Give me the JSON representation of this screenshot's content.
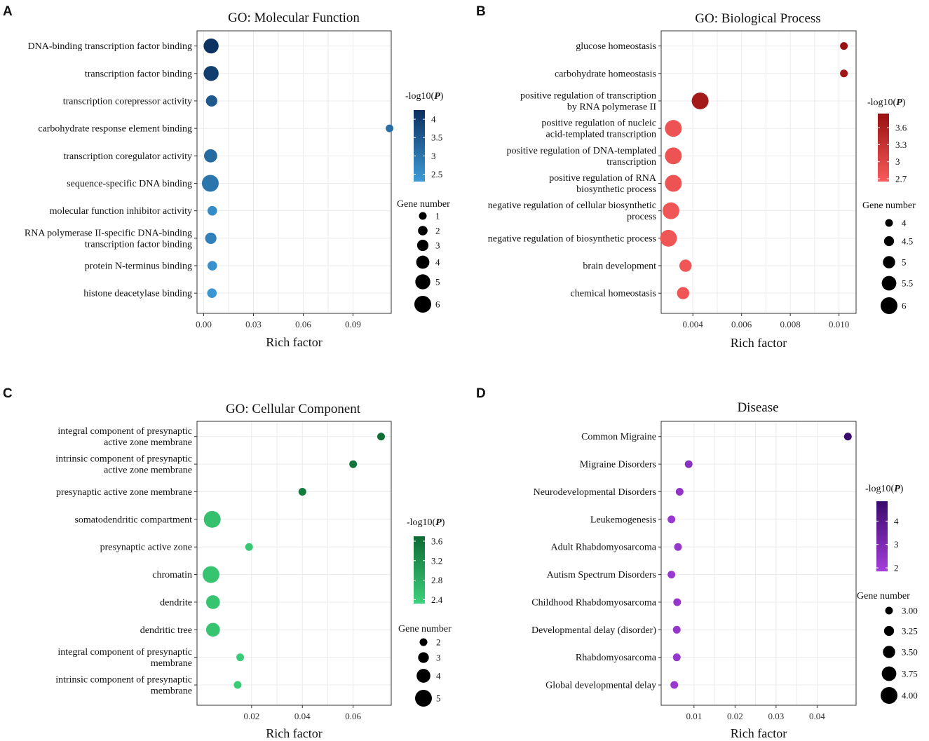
{
  "legend_titles": {
    "pvalue": "-log10(P)",
    "gene": "Gene number"
  },
  "chart_data": [
    {
      "panel": "A",
      "type": "scatter",
      "title": "GO: Molecular Function",
      "xlabel": "Rich factor",
      "xlim": [
        -0.004,
        0.113
      ],
      "xticks": [
        0.0,
        0.03,
        0.06,
        0.09
      ],
      "xticklabels": [
        "0.00",
        "0.03",
        "0.06",
        "0.09"
      ],
      "terms": [
        "DNA-binding transcription factor binding",
        "transcription factor binding",
        "transcription corepressor activity",
        "carbohydrate response element binding",
        "transcription coregulator activity",
        "sequence-specific DNA binding",
        "molecular function inhibitor activity",
        "RNA polymerase II-specific DNA-binding transcription factor binding",
        "protein N-terminus binding",
        "histone deacetylase binding"
      ],
      "term_lines": [
        [
          "DNA-binding transcription factor binding"
        ],
        [
          "transcription factor binding"
        ],
        [
          "transcription corepressor activity"
        ],
        [
          "carbohydrate response element binding"
        ],
        [
          "transcription coregulator activity"
        ],
        [
          "sequence-specific DNA binding"
        ],
        [
          "molecular function inhibitor activity"
        ],
        [
          "RNA polymerase II-specific DNA-binding",
          "transcription factor binding"
        ],
        [
          "protein N-terminus binding"
        ],
        [
          "histone deacetylase binding"
        ]
      ],
      "rich_factor": [
        0.0045,
        0.0045,
        0.0048,
        0.112,
        0.0042,
        0.004,
        0.0052,
        0.0043,
        0.0052,
        0.005
      ],
      "neg_log10_p": [
        4.2,
        4.0,
        3.5,
        3.1,
        3.2,
        3.0,
        2.6,
        2.8,
        2.5,
        2.4
      ],
      "gene_number": [
        5,
        5,
        3,
        1,
        4,
        6,
        2,
        3,
        2,
        2
      ],
      "color_legend": {
        "ticks": [
          2.5,
          3.0,
          3.5,
          4.0
        ],
        "range": [
          2.3,
          4.25
        ],
        "colors": [
          "#3d9bd8",
          "#0c305f"
        ]
      },
      "size_legend": {
        "values": [
          1,
          2,
          3,
          4,
          5,
          6
        ]
      }
    },
    {
      "panel": "B",
      "type": "scatter",
      "title": "GO: Biological Process",
      "xlabel": "Rich factor",
      "xlim": [
        0.0027,
        0.0107
      ],
      "xticks": [
        0.004,
        0.006,
        0.008,
        0.01
      ],
      "xticklabels": [
        "0.004",
        "0.006",
        "0.008",
        "0.010"
      ],
      "terms": [
        "glucose homeostasis",
        "carbohydrate homeostasis",
        "positive regulation of transcription by RNA polymerase II",
        "positive regulation of nucleic acid-templated transcription",
        "positive regulation of DNA-templated transcription",
        "positive regulation of RNA biosynthetic process",
        "negative regulation of cellular biosynthetic process",
        "negative regulation of biosynthetic process",
        "brain development",
        "chemical homeostasis"
      ],
      "term_lines": [
        [
          "glucose homeostasis"
        ],
        [
          "carbohydrate homeostasis"
        ],
        [
          "positive regulation of transcription",
          "by RNA polymerase II"
        ],
        [
          "positive regulation of nucleic",
          "acid-templated transcription"
        ],
        [
          "positive regulation of DNA-templated",
          "transcription"
        ],
        [
          "positive regulation of RNA",
          "biosynthetic process"
        ],
        [
          "negative regulation of cellular biosynthetic",
          "process"
        ],
        [
          "negative regulation of biosynthetic process"
        ],
        [
          "brain development"
        ],
        [
          "chemical homeostasis"
        ]
      ],
      "rich_factor": [
        0.0102,
        0.0102,
        0.0043,
        0.0032,
        0.0032,
        0.0032,
        0.0031,
        0.003,
        0.0037,
        0.0036
      ],
      "neg_log10_p": [
        3.85,
        3.75,
        3.7,
        2.8,
        2.8,
        2.8,
        2.75,
        2.75,
        2.75,
        2.75
      ],
      "gene_number": [
        4,
        4,
        6,
        6,
        6,
        6,
        6,
        6,
        5,
        5
      ],
      "color_legend": {
        "ticks": [
          2.7,
          3.0,
          3.3,
          3.6
        ],
        "range": [
          2.65,
          3.85
        ],
        "colors": [
          "#f95c5c",
          "#981010"
        ]
      },
      "size_legend": {
        "values": [
          4.0,
          4.5,
          5.0,
          5.5,
          6.0
        ]
      }
    },
    {
      "panel": "C",
      "type": "scatter",
      "title": "GO: Cellular Component",
      "xlabel": "Rich factor",
      "xlim": [
        -0.0015,
        0.075
      ],
      "xticks": [
        0.02,
        0.04,
        0.06
      ],
      "xticklabels": [
        "0.02",
        "0.04",
        "0.06"
      ],
      "terms": [
        "integral component of presynaptic active zone membrane",
        "intrinsic component of presynaptic active zone membrane",
        "presynaptic active zone membrane",
        "somatodendritic compartment",
        "presynaptic active zone",
        "chromatin",
        "dendrite",
        "dendritic tree",
        "integral component of presynaptic membrane",
        "intrinsic component of presynaptic membrane"
      ],
      "term_lines": [
        [
          "integral component of presynaptic",
          "active zone membrane"
        ],
        [
          "intrinsic component of presynaptic",
          "active zone membrane"
        ],
        [
          "presynaptic active zone membrane"
        ],
        [
          "somatodendritic compartment"
        ],
        [
          "presynaptic active zone"
        ],
        [
          "chromatin"
        ],
        [
          "dendrite"
        ],
        [
          "dendritic tree"
        ],
        [
          "integral component of presynaptic",
          "membrane"
        ],
        [
          "intrinsic component of presynaptic",
          "membrane"
        ]
      ],
      "rich_factor": [
        0.071,
        0.06,
        0.04,
        0.0045,
        0.019,
        0.004,
        0.0048,
        0.0048,
        0.0155,
        0.0145
      ],
      "neg_log10_p": [
        3.65,
        3.55,
        3.5,
        2.55,
        2.45,
        2.5,
        2.5,
        2.5,
        2.4,
        2.4
      ],
      "gene_number": [
        2,
        2,
        2,
        5,
        2,
        5,
        4,
        4,
        2,
        2
      ],
      "color_legend": {
        "ticks": [
          2.4,
          2.8,
          3.2,
          3.6
        ],
        "range": [
          2.32,
          3.7
        ],
        "colors": [
          "#3dd17a",
          "#0d6b34"
        ]
      },
      "size_legend": {
        "values": [
          2,
          3,
          4,
          5
        ]
      }
    },
    {
      "panel": "D",
      "type": "scatter",
      "title": "Disease",
      "xlabel": "Rich factor",
      "xlim": [
        0.002,
        0.0495
      ],
      "xticks": [
        0.01,
        0.02,
        0.03,
        0.04
      ],
      "xticklabels": [
        "0.01",
        "0.02",
        "0.03",
        "0.04"
      ],
      "terms": [
        "Common Migraine",
        "Migraine Disorders",
        "Neurodevelopmental Disorders",
        "Leukemogenesis",
        "Adult Rhabdomyosarcoma",
        "Autism Spectrum Disorders",
        "Childhood Rhabdomyosarcoma",
        "Developmental delay (disorder)",
        "Rhabdomyosarcoma",
        "Global developmental delay"
      ],
      "term_lines": [
        [
          "Common Migraine"
        ],
        [
          "Migraine Disorders"
        ],
        [
          "Neurodevelopmental Disorders"
        ],
        [
          "Leukemogenesis"
        ],
        [
          "Adult Rhabdomyosarcoma"
        ],
        [
          "Autism Spectrum Disorders"
        ],
        [
          "Childhood Rhabdomyosarcoma"
        ],
        [
          "Developmental delay (disorder)"
        ],
        [
          "Rhabdomyosarcoma"
        ],
        [
          "Global developmental delay"
        ]
      ],
      "rich_factor": [
        0.0475,
        0.0087,
        0.0065,
        0.0045,
        0.0061,
        0.0045,
        0.0059,
        0.0058,
        0.0058,
        0.0052
      ],
      "neg_log10_p": [
        4.9,
        2.6,
        2.4,
        2.2,
        2.3,
        2.2,
        2.3,
        2.3,
        2.3,
        2.2
      ],
      "gene_number": [
        3,
        3,
        3,
        3,
        3,
        3,
        3,
        3,
        3,
        3
      ],
      "color_legend": {
        "ticks": [
          2,
          3,
          4
        ],
        "range": [
          1.85,
          4.85
        ],
        "colors": [
          "#a43fdc",
          "#3a0a6c"
        ]
      },
      "size_legend": {
        "values": [
          "3.00",
          "3.25",
          "3.50",
          "3.75",
          "4.00"
        ]
      }
    }
  ]
}
